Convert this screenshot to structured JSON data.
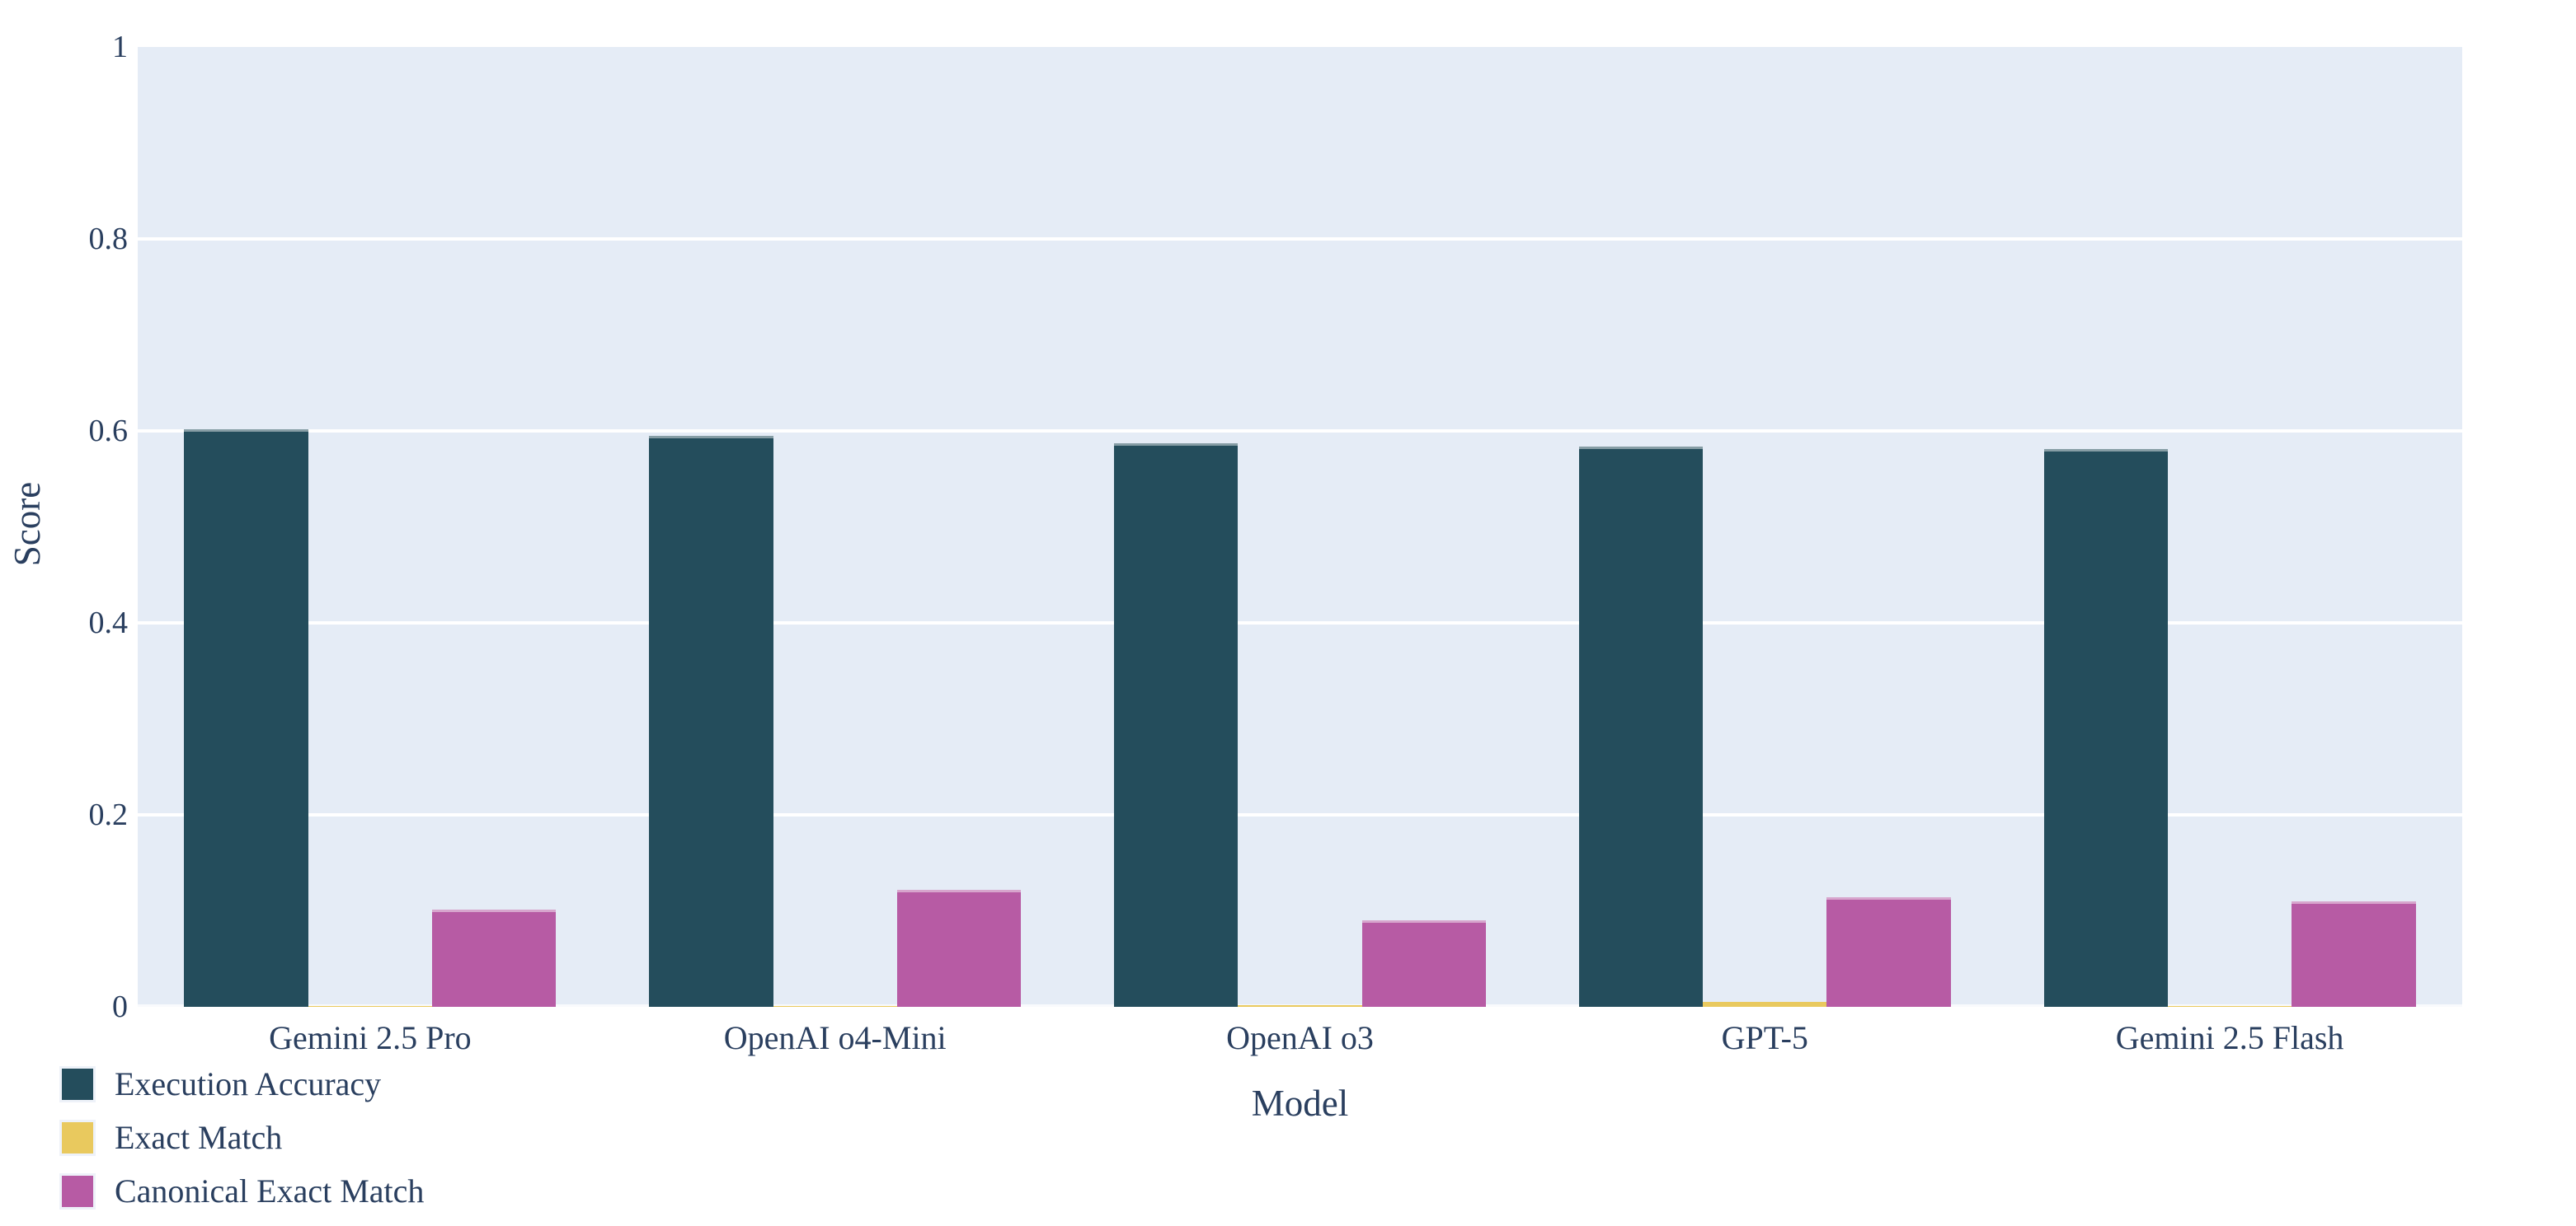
{
  "chart_data": {
    "type": "bar",
    "title": "",
    "xlabel": "Model",
    "ylabel": "Score",
    "ylim": [
      0,
      1
    ],
    "yticks": [
      0,
      0.2,
      0.4,
      0.6,
      0.8,
      1
    ],
    "ytick_labels": [
      "0",
      "0.2",
      "0.4",
      "0.6",
      "0.8",
      "1"
    ],
    "grid": true,
    "legend_position": "bottom-left",
    "categories": [
      "Gemini 2.5 Pro",
      "OpenAI o4-Mini",
      "OpenAI o3",
      "GPT-5",
      "Gemini 2.5 Flash"
    ],
    "series": [
      {
        "name": "Execution Accuracy",
        "color": "#244D5C",
        "values": [
          0.602,
          0.595,
          0.587,
          0.584,
          0.581
        ]
      },
      {
        "name": "Exact Match",
        "color": "#E9C95E",
        "values": [
          0.001,
          0.001,
          0.002,
          0.005,
          0.001
        ]
      },
      {
        "name": "Canonical Exact Match",
        "color": "#B75BA4",
        "values": [
          0.101,
          0.122,
          0.09,
          0.114,
          0.11
        ]
      }
    ]
  },
  "colors": {
    "text": "#2A3F5F",
    "plot_background": "#E5ECF6",
    "gridline": "#FFFFFF",
    "paper_background": "#FFFFFF"
  }
}
